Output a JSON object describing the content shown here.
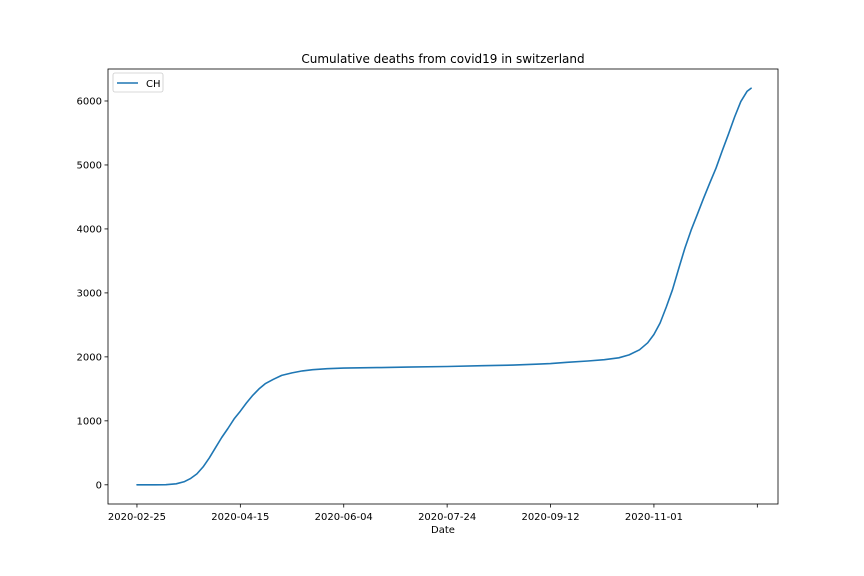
{
  "chart_data": {
    "type": "line",
    "title": "Cumulative deaths from covid19 in switzerland",
    "xlabel": "Date",
    "ylabel": "",
    "x_tick_labels": [
      "2020-02-25",
      "2020-04-15",
      "2020-06-04",
      "2020-07-24",
      "2020-09-12",
      "2020-11-01",
      ""
    ],
    "y_ticks": [
      0,
      1000,
      2000,
      3000,
      4000,
      5000,
      6000
    ],
    "ylim": [
      -300,
      6500
    ],
    "xlim": [
      "2020-02-11",
      "2020-12-31"
    ],
    "grid": false,
    "legend_position": "top-left",
    "series": [
      {
        "name": "CH",
        "color": "#1f77b4",
        "points": [
          [
            "2020-02-25",
            0
          ],
          [
            "2020-03-05",
            0
          ],
          [
            "2020-03-10",
            2
          ],
          [
            "2020-03-15",
            15
          ],
          [
            "2020-03-19",
            50
          ],
          [
            "2020-03-22",
            100
          ],
          [
            "2020-03-25",
            170
          ],
          [
            "2020-03-28",
            280
          ],
          [
            "2020-03-31",
            420
          ],
          [
            "2020-04-03",
            580
          ],
          [
            "2020-04-06",
            740
          ],
          [
            "2020-04-09",
            880
          ],
          [
            "2020-04-12",
            1030
          ],
          [
            "2020-04-15",
            1150
          ],
          [
            "2020-04-18",
            1280
          ],
          [
            "2020-04-21",
            1400
          ],
          [
            "2020-04-24",
            1500
          ],
          [
            "2020-04-27",
            1580
          ],
          [
            "2020-05-01",
            1650
          ],
          [
            "2020-05-05",
            1710
          ],
          [
            "2020-05-10",
            1750
          ],
          [
            "2020-05-15",
            1780
          ],
          [
            "2020-05-20",
            1800
          ],
          [
            "2020-05-27",
            1815
          ],
          [
            "2020-06-04",
            1825
          ],
          [
            "2020-06-20",
            1832
          ],
          [
            "2020-07-05",
            1840
          ],
          [
            "2020-07-24",
            1850
          ],
          [
            "2020-08-10",
            1862
          ],
          [
            "2020-08-25",
            1872
          ],
          [
            "2020-09-05",
            1885
          ],
          [
            "2020-09-12",
            1895
          ],
          [
            "2020-09-20",
            1915
          ],
          [
            "2020-09-30",
            1935
          ],
          [
            "2020-10-08",
            1955
          ],
          [
            "2020-10-15",
            1985
          ],
          [
            "2020-10-20",
            2030
          ],
          [
            "2020-10-25",
            2110
          ],
          [
            "2020-10-29",
            2220
          ],
          [
            "2020-11-01",
            2350
          ],
          [
            "2020-11-04",
            2530
          ],
          [
            "2020-11-07",
            2780
          ],
          [
            "2020-11-10",
            3050
          ],
          [
            "2020-11-13",
            3380
          ],
          [
            "2020-11-16",
            3700
          ],
          [
            "2020-11-19",
            3980
          ],
          [
            "2020-11-22",
            4230
          ],
          [
            "2020-11-25",
            4480
          ],
          [
            "2020-11-28",
            4720
          ],
          [
            "2020-12-01",
            4950
          ],
          [
            "2020-12-04",
            5220
          ],
          [
            "2020-12-07",
            5480
          ],
          [
            "2020-12-10",
            5750
          ],
          [
            "2020-12-13",
            5990
          ],
          [
            "2020-12-16",
            6150
          ],
          [
            "2020-12-18",
            6200
          ]
        ]
      }
    ]
  }
}
